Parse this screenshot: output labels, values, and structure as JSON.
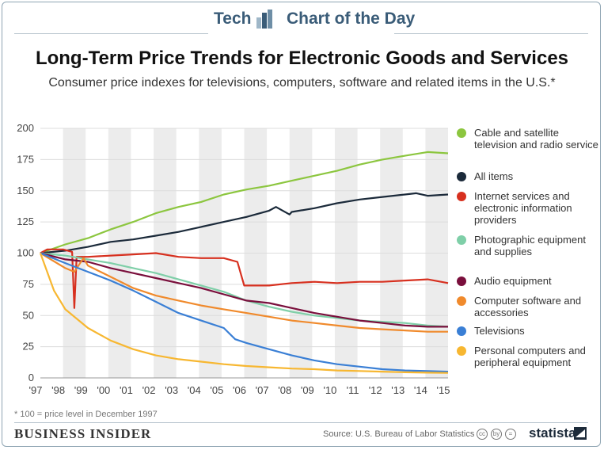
{
  "header": {
    "left_label": "Tech",
    "right_label": "Chart of the Day",
    "logo_icon": "bar-chart-logo-icon"
  },
  "title": "Long-Term Price Trends for Electronic Goods and Services",
  "subtitle": "Consumer price indexes for televisions, computers, software and related items in the U.S.*",
  "footnote": "* 100 = price level in December 1997",
  "brand": "BUSINESS INSIDER",
  "source": "Source: U.S. Bureau of Labor Statistics",
  "cc_icons": [
    "cc",
    "by",
    "="
  ],
  "statista": "statista",
  "chart_data": {
    "type": "line",
    "x_tick_labels": [
      "'97",
      "'98",
      "'99",
      "'00",
      "'01",
      "'02",
      "'03",
      "'04",
      "'05",
      "'06",
      "'07",
      "'08",
      "'09",
      "'10",
      "'11",
      "'12",
      "'13",
      "'14",
      "'15"
    ],
    "x_range": [
      1997.9,
      2015.9
    ],
    "ylim": [
      0,
      200
    ],
    "y_ticks": [
      0,
      25,
      50,
      75,
      100,
      125,
      150,
      175,
      200
    ],
    "grid": "horizontal lines, alternating year bands",
    "legend_position": "right",
    "series": [
      {
        "name": "Cable and satellite television and radio service",
        "color": "#8cc63f",
        "x": [
          1997.9,
          1999,
          2000,
          2001,
          2002,
          2003,
          2004,
          2005,
          2006,
          2007,
          2008,
          2009,
          2010,
          2011,
          2012,
          2013,
          2014,
          2015,
          2015.9
        ],
        "y": [
          100,
          107,
          112,
          119,
          125,
          132,
          137,
          141,
          147,
          151,
          154,
          158,
          162,
          166,
          171,
          175,
          178,
          181,
          180
        ]
      },
      {
        "name": "All items",
        "color": "#1b2a3a",
        "x": [
          1997.9,
          1999,
          2000,
          2001,
          2002,
          2003,
          2004,
          2005,
          2006,
          2007,
          2008,
          2008.3,
          2008.9,
          2009,
          2010,
          2011,
          2012,
          2013,
          2014,
          2014.5,
          2015,
          2015.9
        ],
        "y": [
          100,
          102,
          105,
          109,
          111,
          114,
          117,
          121,
          125,
          129,
          134,
          137,
          131,
          133,
          136,
          140,
          143,
          145,
          147,
          148,
          146,
          147
        ]
      },
      {
        "name": "Internet services and electronic information providers",
        "color": "#d7301f",
        "x": [
          1997.9,
          1998.2,
          1998.9,
          1999.3,
          1999.4,
          1999.5,
          2000,
          2001,
          2002,
          2003,
          2004,
          2005,
          2006,
          2006.6,
          2006.9,
          2007,
          2008,
          2009,
          2010,
          2011,
          2012,
          2013,
          2014,
          2015,
          2015.9
        ],
        "y": [
          100,
          103,
          103,
          101,
          56,
          97,
          97,
          98,
          99,
          100,
          97,
          96,
          96,
          93,
          74,
          74,
          74,
          76,
          77,
          76,
          77,
          77,
          78,
          79,
          76
        ]
      },
      {
        "name": "Photographic equipment and supplies",
        "color": "#7fcfa8",
        "x": [
          1997.9,
          1999,
          2000,
          2001,
          2002,
          2003,
          2004,
          2005,
          2006,
          2007,
          2008,
          2009,
          2010,
          2011,
          2012,
          2013,
          2014,
          2015,
          2015.9
        ],
        "y": [
          100,
          98,
          95,
          92,
          88,
          84,
          79,
          74,
          69,
          62,
          57,
          53,
          50,
          48,
          46,
          45,
          44,
          42,
          41
        ]
      },
      {
        "name": "Audio equipment",
        "color": "#7a0f3c",
        "x": [
          1997.9,
          1999,
          2000,
          2001,
          2002,
          2003,
          2004,
          2005,
          2006,
          2007,
          2008,
          2009,
          2010,
          2011,
          2012,
          2013,
          2014,
          2015,
          2015.9
        ],
        "y": [
          100,
          95,
          93,
          88,
          84,
          80,
          76,
          72,
          67,
          62,
          60,
          56,
          52,
          49,
          46,
          44,
          42,
          41,
          41
        ]
      },
      {
        "name": "Computer software and accessories",
        "color": "#f08a2c",
        "x": [
          1997.9,
          1999,
          1999.4,
          1999.8,
          2000,
          2001,
          2002,
          2003,
          2004,
          2005,
          2006,
          2007,
          2008,
          2009,
          2010,
          2011,
          2012,
          2013,
          2014,
          2015,
          2015.9
        ],
        "y": [
          100,
          88,
          85,
          96,
          90,
          81,
          72,
          66,
          62,
          58,
          55,
          52,
          49,
          46,
          44,
          42,
          40,
          39,
          38,
          37,
          37
        ]
      },
      {
        "name": "Televisions",
        "color": "#3a7fd5",
        "x": [
          1997.9,
          1999,
          2000,
          2001,
          2002,
          2003,
          2004,
          2005,
          2006,
          2006.5,
          2007,
          2008,
          2009,
          2010,
          2011,
          2012,
          2013,
          2014,
          2015,
          2015.9
        ],
        "y": [
          100,
          92,
          85,
          78,
          70,
          61,
          52,
          46,
          40,
          31,
          28,
          23,
          18,
          14,
          11,
          9,
          7,
          6,
          5.5,
          5
        ]
      },
      {
        "name": "Personal computers and peripheral equipment",
        "color": "#f7b731",
        "x": [
          1997.9,
          1998.5,
          1999,
          2000,
          2001,
          2002,
          2003,
          2004,
          2005,
          2006,
          2007,
          2008,
          2009,
          2010,
          2011,
          2012,
          2013,
          2014,
          2015,
          2015.9
        ],
        "y": [
          100,
          70,
          55,
          40,
          30,
          23,
          18,
          15,
          13,
          11,
          9.5,
          8.5,
          7.5,
          7,
          6,
          5.5,
          5,
          4.5,
          4.2,
          4
        ]
      }
    ]
  }
}
